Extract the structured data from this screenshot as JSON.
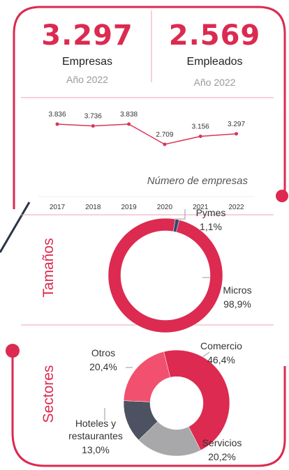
{
  "kpis": [
    {
      "value": "3.297",
      "label": "Empresas",
      "sub": "Año 2022"
    },
    {
      "value": "2.569",
      "label": "Empleados",
      "sub": "Año 2022"
    }
  ],
  "chart_data": [
    {
      "type": "line",
      "categories": [
        "2017",
        "2018",
        "2019",
        "2020",
        "2021",
        "2022"
      ],
      "values": [
        3836,
        3736,
        3838,
        2709,
        3156,
        3297
      ],
      "value_labels": [
        "3.836",
        "3.736",
        "3.838",
        "2.709",
        "3.156",
        "3.297"
      ],
      "color": "#d9345a",
      "annotation": "Número de empresas"
    },
    {
      "type": "pie",
      "title": "Tamaños",
      "categories": [
        "Pymes",
        "Micros"
      ],
      "values": [
        1.1,
        98.9
      ],
      "value_labels": [
        "1,1%",
        "98,9%"
      ],
      "colors": [
        "#2e4a70",
        "#dc2a50"
      ]
    },
    {
      "type": "pie",
      "title": "Sectores",
      "categories": [
        "Comercio",
        "Servicios",
        "Hoteles y restaurantes",
        "Otros"
      ],
      "values": [
        46.4,
        20.2,
        13.0,
        20.4
      ],
      "value_labels": [
        "46,4%",
        "20,2%",
        "13,0%",
        "20,4%"
      ],
      "colors": [
        "#dc2a50",
        "#a8a8aa",
        "#4c5261",
        "#f2506f"
      ]
    }
  ]
}
